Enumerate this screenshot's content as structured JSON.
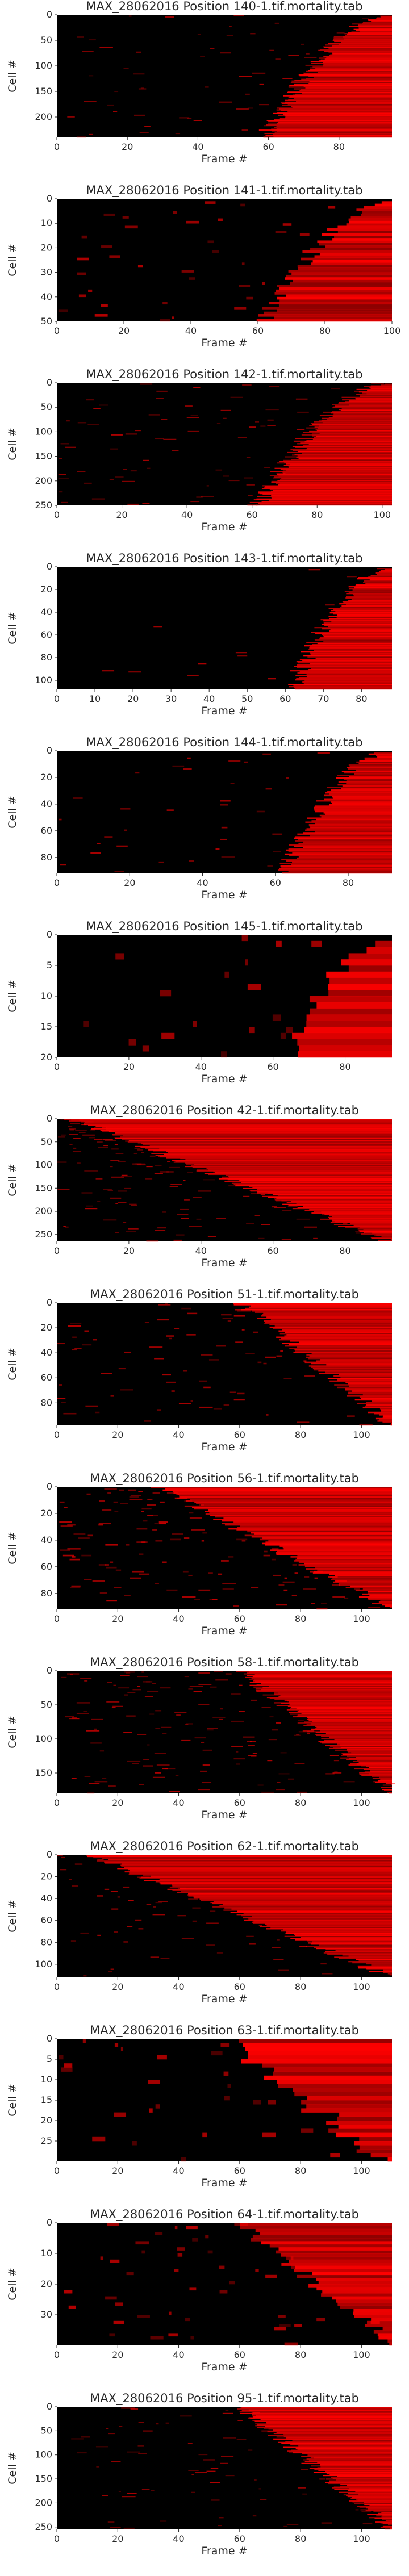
{
  "chart_data": [
    {
      "type": "heatmap",
      "title": "MAX_28062016 Position 140-1.tif.mortality.tab",
      "xlabel": "Frame #",
      "ylabel": "Cell #",
      "xlim": [
        0,
        95
      ],
      "ylim": [
        0,
        240
      ],
      "xticks": [
        0,
        20,
        40,
        60,
        80
      ],
      "yticks": [
        0,
        50,
        100,
        150,
        200
      ],
      "colormap": [
        "#000000",
        "#ff0000"
      ],
      "onset": [
        0.62,
        1.0
      ],
      "noise": 0.08,
      "shape": "rise"
    },
    {
      "type": "heatmap",
      "title": "MAX_28062016 Position 141-1.tif.mortality.tab",
      "xlabel": "Frame #",
      "ylabel": "Cell #",
      "xlim": [
        0,
        100
      ],
      "ylim": [
        0,
        50
      ],
      "xticks": [
        0,
        20,
        40,
        60,
        80,
        100
      ],
      "yticks": [
        0,
        10,
        20,
        30,
        40,
        50
      ],
      "colormap": [
        "#000000",
        "#ff0000"
      ],
      "onset": [
        0.62,
        1.0
      ],
      "noise": 0.15,
      "shape": "rise"
    },
    {
      "type": "heatmap",
      "title": "MAX_28062016 Position 142-1.tif.mortality.tab",
      "xlabel": "Frame #",
      "ylabel": "Cell #",
      "xlim": [
        0,
        103
      ],
      "ylim": [
        0,
        250
      ],
      "xticks": [
        0,
        20,
        40,
        60,
        80,
        100
      ],
      "yticks": [
        0,
        50,
        100,
        150,
        200,
        250
      ],
      "colormap": [
        "#000000",
        "#ff0000"
      ],
      "onset": [
        0.6,
        1.0
      ],
      "noise": 0.1,
      "shape": "rise"
    },
    {
      "type": "heatmap",
      "title": "MAX_28062016 Position 143-1.tif.mortality.tab",
      "xlabel": "Frame #",
      "ylabel": "Cell #",
      "xlim": [
        0,
        88
      ],
      "ylim": [
        0,
        108
      ],
      "xticks": [
        0,
        10,
        20,
        30,
        40,
        50,
        60,
        70,
        80
      ],
      "yticks": [
        0,
        20,
        40,
        60,
        80,
        100
      ],
      "colormap": [
        "#000000",
        "#ff0000"
      ],
      "onset": [
        0.7,
        1.0
      ],
      "noise": 0.06,
      "shape": "rise"
    },
    {
      "type": "heatmap",
      "title": "MAX_28062016 Position 144-1.tif.mortality.tab",
      "xlabel": "Frame #",
      "ylabel": "Cell #",
      "xlim": [
        0,
        92
      ],
      "ylim": [
        0,
        92
      ],
      "xticks": [
        0,
        20,
        40,
        60,
        80
      ],
      "yticks": [
        0,
        20,
        40,
        60,
        80
      ],
      "colormap": [
        "#000000",
        "#ff0000"
      ],
      "onset": [
        0.68,
        0.98
      ],
      "noise": 0.08,
      "shape": "rise"
    },
    {
      "type": "heatmap",
      "title": "MAX_28062016 Position 145-1.tif.mortality.tab",
      "xlabel": "Frame #",
      "ylabel": "Cell #",
      "xlim": [
        0,
        93
      ],
      "ylim": [
        0,
        20
      ],
      "xticks": [
        0,
        20,
        40,
        60,
        80
      ],
      "yticks": [
        0,
        5,
        10,
        15,
        20
      ],
      "colormap": [
        "#000000",
        "#ff0000"
      ],
      "onset": [
        0.7,
        0.98
      ],
      "noise": 0.2,
      "shape": "rise"
    },
    {
      "type": "heatmap",
      "title": "MAX_28062016 Position 42-1.tif.mortality.tab",
      "xlabel": "Frame #",
      "ylabel": "Cell #",
      "xlim": [
        0,
        93
      ],
      "ylim": [
        0,
        265
      ],
      "xticks": [
        0,
        20,
        40,
        60,
        80
      ],
      "yticks": [
        0,
        50,
        100,
        150,
        200,
        250
      ],
      "colormap": [
        "#000000",
        "#ff0000"
      ],
      "onset": [
        0.05,
        0.98
      ],
      "noise": 0.18,
      "shape": "staircase"
    },
    {
      "type": "heatmap",
      "title": "MAX_28062016 Position 51-1.tif.mortality.tab",
      "xlabel": "Frame #",
      "ylabel": "Cell #",
      "xlim": [
        0,
        110
      ],
      "ylim": [
        0,
        98
      ],
      "xticks": [
        0,
        20,
        40,
        60,
        80,
        100
      ],
      "yticks": [
        0,
        20,
        40,
        60,
        80
      ],
      "colormap": [
        "#000000",
        "#ff0000"
      ],
      "onset": [
        0.55,
        1.0
      ],
      "noise": 0.14,
      "shape": "staircase"
    },
    {
      "type": "heatmap",
      "title": "MAX_28062016 Position 56-1.tif.mortality.tab",
      "xlabel": "Frame #",
      "ylabel": "Cell #",
      "xlim": [
        0,
        110
      ],
      "ylim": [
        0,
        92
      ],
      "xticks": [
        0,
        20,
        40,
        60,
        80,
        100
      ],
      "yticks": [
        0,
        20,
        40,
        60,
        80
      ],
      "colormap": [
        "#000000",
        "#ff0000"
      ],
      "onset": [
        0.3,
        1.0
      ],
      "noise": 0.3,
      "shape": "staircase"
    },
    {
      "type": "heatmap",
      "title": "MAX_28062016 Position 58-1.tif.mortality.tab",
      "xlabel": "Frame #",
      "ylabel": "Cell #",
      "xlim": [
        0,
        110
      ],
      "ylim": [
        0,
        180
      ],
      "xticks": [
        0,
        20,
        40,
        60,
        80,
        100
      ],
      "yticks": [
        0,
        50,
        100,
        150
      ],
      "colormap": [
        "#000000",
        "#ff0000"
      ],
      "onset": [
        0.55,
        1.0
      ],
      "noise": 0.22,
      "shape": "staircase"
    },
    {
      "type": "heatmap",
      "title": "MAX_28062016 Position 62-1.tif.mortality.tab",
      "xlabel": "Frame #",
      "ylabel": "Cell #",
      "xlim": [
        0,
        110
      ],
      "ylim": [
        0,
        112
      ],
      "xticks": [
        0,
        20,
        40,
        60,
        80,
        100
      ],
      "yticks": [
        0,
        20,
        40,
        60,
        80,
        100
      ],
      "colormap": [
        "#000000",
        "#ff0000"
      ],
      "onset": [
        0.1,
        1.0
      ],
      "noise": 0.1,
      "shape": "staircase"
    },
    {
      "type": "heatmap",
      "title": "MAX_28062016 Position 63-1.tif.mortality.tab",
      "xlabel": "Frame #",
      "ylabel": "Cell #",
      "xlim": [
        0,
        110
      ],
      "ylim": [
        0,
        30
      ],
      "xticks": [
        0,
        20,
        40,
        60,
        80,
        100
      ],
      "yticks": [
        0,
        5,
        10,
        15,
        20,
        25
      ],
      "colormap": [
        "#000000",
        "#ff0000"
      ],
      "onset": [
        0.55,
        1.0
      ],
      "noise": 0.18,
      "shape": "blocks"
    },
    {
      "type": "heatmap",
      "title": "MAX_28062016 Position 64-1.tif.mortality.tab",
      "xlabel": "Frame #",
      "ylabel": "Cell #",
      "xlim": [
        0,
        110
      ],
      "ylim": [
        0,
        40
      ],
      "xticks": [
        0,
        20,
        40,
        60,
        80,
        100
      ],
      "yticks": [
        0,
        10,
        20,
        30
      ],
      "colormap": [
        "#000000",
        "#ff0000"
      ],
      "onset": [
        0.55,
        1.0
      ],
      "noise": 0.22,
      "shape": "staircase"
    },
    {
      "type": "heatmap",
      "title": "MAX_28062016 Position 95-1.tif.mortality.tab",
      "xlabel": "Frame #",
      "ylabel": "Cell #",
      "xlim": [
        0,
        110
      ],
      "ylim": [
        0,
        255
      ],
      "xticks": [
        0,
        20,
        40,
        60,
        80,
        100
      ],
      "yticks": [
        0,
        50,
        100,
        150,
        200,
        250
      ],
      "colormap": [
        "#000000",
        "#ff0000"
      ],
      "onset": [
        0.55,
        1.0
      ],
      "noise": 0.1,
      "shape": "staircase"
    }
  ]
}
